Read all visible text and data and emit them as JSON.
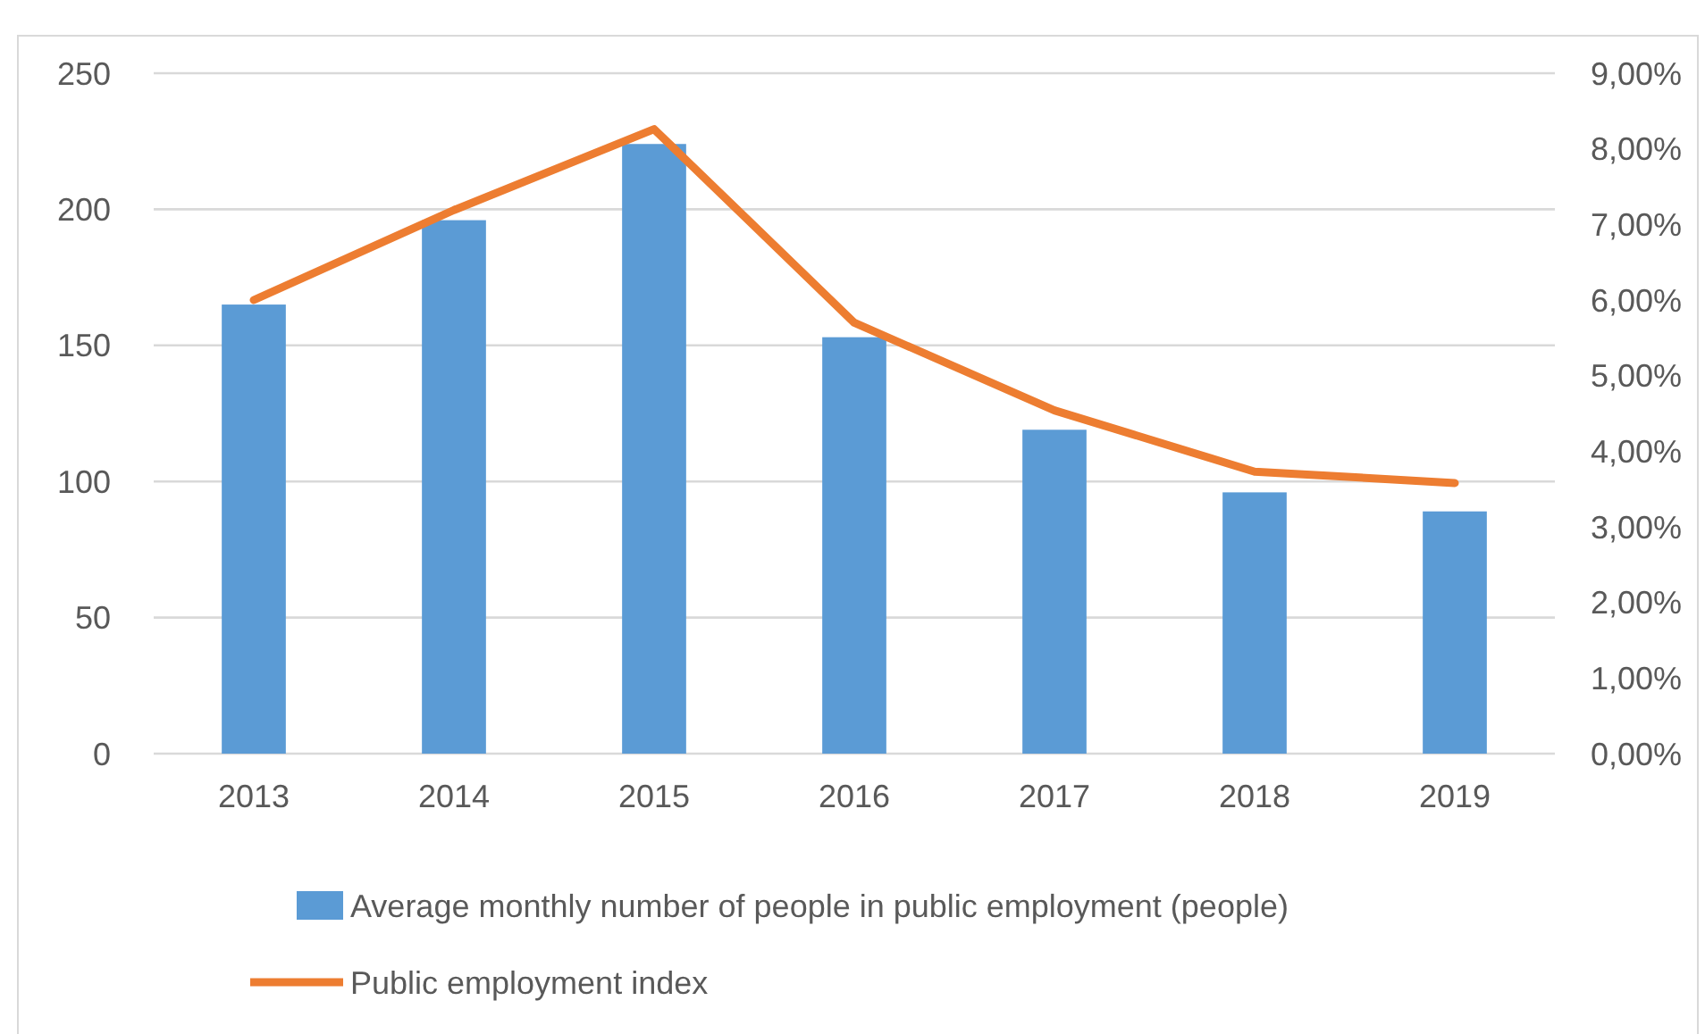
{
  "chart_data": {
    "type": "bar",
    "categories": [
      "2013",
      "2014",
      "2015",
      "2016",
      "2017",
      "2018",
      "2019"
    ],
    "series": [
      {
        "name": "Average monthly number of people in public employment (people)",
        "color": "#5b9bd5",
        "values": [
          165,
          196,
          224,
          153,
          119,
          96,
          89
        ]
      },
      {
        "name": "Public employment index",
        "type": "line",
        "axis": "y2",
        "color": "#ed7d31",
        "values": [
          6.0,
          7.19,
          8.26,
          5.7,
          4.54,
          3.73,
          3.58
        ]
      }
    ],
    "ylim": [
      0,
      250
    ],
    "yticks": [
      0,
      50,
      100,
      150,
      200,
      250
    ],
    "y2lim": [
      0,
      9
    ],
    "y2ticks": [
      {
        "value": 0,
        "label": "0,00%"
      },
      {
        "value": 1,
        "label": "1,00%"
      },
      {
        "value": 2,
        "label": "2,00%"
      },
      {
        "value": 3,
        "label": "3,00%"
      },
      {
        "value": 4,
        "label": "4,00%"
      },
      {
        "value": 5,
        "label": "5,00%"
      },
      {
        "value": 6,
        "label": "6,00%"
      },
      {
        "value": 7,
        "label": "7,00%"
      },
      {
        "value": 8,
        "label": "8,00%"
      },
      {
        "value": 9,
        "label": "9,00%"
      }
    ],
    "grid": "y",
    "legend": "bottom",
    "marker": "none"
  }
}
